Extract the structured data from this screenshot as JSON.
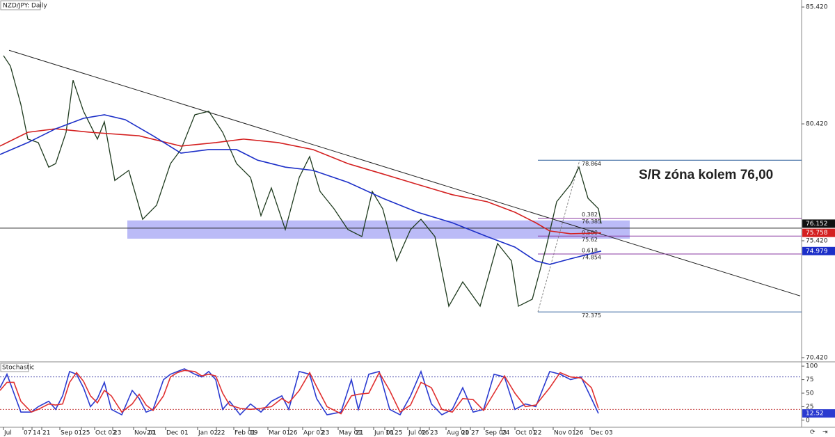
{
  "chart_data": [
    {
      "type": "line",
      "title": "NZD/JPY: Daily",
      "annotation": "S/R zóna kolem 76,00",
      "xlim": [
        0,
        1152
      ],
      "ylim": [
        70.24,
        85.72
      ],
      "yticks": [
        {
          "value": 85.42,
          "label": "85.420"
        },
        {
          "value": 80.42,
          "label": "80.420"
        },
        {
          "value": 75.42,
          "label": "75.420"
        },
        {
          "value": 70.42,
          "label": "70.420"
        }
      ],
      "series": [
        {
          "color": "#1e3a1e",
          "x": [
            5,
            15,
            30,
            40,
            55,
            70,
            80,
            95,
            105,
            120,
            140,
            150,
            165,
            185,
            205,
            225,
            245,
            260,
            280,
            300,
            320,
            340,
            360,
            375,
            390,
            410,
            430,
            445,
            460,
            480,
            500,
            520,
            535,
            550,
            570,
            590,
            605,
            625,
            645,
            665,
            690,
            715,
            735,
            745,
            765,
            785,
            800,
            820,
            832,
            845,
            860,
            864
          ],
          "values": [
            83.34,
            82.89,
            81.25,
            79.77,
            79.62,
            78.57,
            78.72,
            80.06,
            82.29,
            80.96,
            79.77,
            80.51,
            78.0,
            78.43,
            76.34,
            76.94,
            78.72,
            79.32,
            80.81,
            80.96,
            80.06,
            78.72,
            78.13,
            76.49,
            77.68,
            75.9,
            78.13,
            79.02,
            77.53,
            76.79,
            75.9,
            75.6,
            77.53,
            76.79,
            74.56,
            75.9,
            76.34,
            75.6,
            72.62,
            73.66,
            72.62,
            75.3,
            74.56,
            72.62,
            72.92,
            75.15,
            77.09,
            77.83,
            78.57,
            77.24,
            76.79,
            76.152
          ]
        },
        {
          "color": "#d42020",
          "x": [
            0,
            40,
            80,
            130,
            200,
            260,
            310,
            350,
            400,
            450,
            500,
            550,
            600,
            650,
            700,
            740,
            770,
            790,
            820,
            864
          ],
          "values": [
            79.47,
            80.06,
            80.21,
            80.06,
            79.91,
            79.47,
            79.62,
            79.77,
            79.62,
            79.32,
            78.72,
            78.28,
            77.83,
            77.39,
            77.09,
            76.64,
            76.19,
            75.84,
            75.72,
            75.758
          ]
        },
        {
          "color": "#1c2fc8",
          "x": [
            0,
            40,
            80,
            120,
            150,
            180,
            220,
            260,
            300,
            340,
            370,
            410,
            450,
            500,
            550,
            600,
            650,
            700,
            740,
            770,
            790,
            820,
            864
          ],
          "values": [
            79.11,
            79.62,
            80.21,
            80.66,
            80.81,
            80.6,
            79.91,
            79.17,
            79.32,
            79.32,
            78.87,
            78.57,
            78.43,
            77.92,
            77.24,
            76.64,
            76.19,
            75.6,
            75.15,
            74.56,
            74.41,
            74.65,
            74.979
          ]
        }
      ],
      "sr_zone": {
        "x": [
          183,
          905
        ],
        "range": [
          75.51,
          76.29
        ],
        "color": "#7878f0"
      },
      "support_line": 75.96,
      "trendline": {
        "x": [
          13,
          1150
        ],
        "values": [
          83.57,
          73.06
        ]
      },
      "fibonacci": {
        "x": [
          773,
          1152
        ],
        "swing_x": [
          773,
          833
        ],
        "levels": [
          {
            "value": 78.864,
            "color": "#2a5d9a"
          },
          {
            "ratio": 0.382,
            "value": 76.385,
            "color": "#8a3aa0"
          },
          {
            "ratio": {
              "value": 0.5,
              "label": "0.500"
            },
            "value": 75.62,
            "color": "#8a3aa0"
          },
          {
            "ratio": 0.618,
            "value": 74.854,
            "color": "#8a3aa0"
          },
          {
            "value": 72.375,
            "color": "#2a5d9a"
          }
        ]
      }
    },
    {
      "type": "line",
      "title": "Stochastic",
      "xlim": [
        0,
        1152
      ],
      "ylim": [
        -10.5,
        107.9
      ],
      "yticks": [
        0,
        25,
        50,
        75,
        100
      ],
      "levels": [
        20,
        80
      ],
      "xticks": [
        {
          "value": 5,
          "label": "Jul"
        },
        {
          "value": 33,
          "label": "07"
        },
        {
          "value": 46,
          "label": "14"
        },
        {
          "value": 60,
          "label": "21"
        },
        {
          "value": 86,
          "label": "Sep 01"
        },
        {
          "value": 117,
          "label": "25"
        },
        {
          "value": 136,
          "label": "Oct 02"
        },
        {
          "value": 162,
          "label": "23"
        },
        {
          "value": 192,
          "label": "Nov 01"
        },
        {
          "value": 210,
          "label": "20"
        },
        {
          "value": 238,
          "label": "Dec 01"
        },
        {
          "value": 284,
          "label": "Jan 02"
        },
        {
          "value": 311,
          "label": "22"
        },
        {
          "value": 336,
          "label": "Feb 01"
        },
        {
          "value": 358,
          "label": "19"
        },
        {
          "value": 385,
          "label": "Mar 01"
        },
        {
          "value": 415,
          "label": "26"
        },
        {
          "value": 435,
          "label": "Apr 02"
        },
        {
          "value": 461,
          "label": "23"
        },
        {
          "value": 486,
          "label": "May 01"
        },
        {
          "value": 510,
          "label": "21"
        },
        {
          "value": 537,
          "label": "Jun 01"
        },
        {
          "value": 553,
          "label": "18"
        },
        {
          "value": 566,
          "label": "25"
        },
        {
          "value": 586,
          "label": "Jul 02"
        },
        {
          "value": 604,
          "label": "16"
        },
        {
          "value": 617,
          "label": "23"
        },
        {
          "value": 641,
          "label": "Aug 01"
        },
        {
          "value": 662,
          "label": "20"
        },
        {
          "value": 676,
          "label": "27"
        },
        {
          "value": 696,
          "label": "Sep 03"
        },
        {
          "value": 720,
          "label": "24"
        },
        {
          "value": 740,
          "label": "Oct 01"
        },
        {
          "value": 766,
          "label": "22"
        },
        {
          "value": 795,
          "label": "Nov 01"
        },
        {
          "value": 826,
          "label": "26"
        },
        {
          "value": 848,
          "label": "Dec 03"
        }
      ],
      "series": [
        {
          "color": "#2a3ad0",
          "x": [
            0,
            10,
            20,
            30,
            45,
            55,
            70,
            80,
            90,
            100,
            110,
            120,
            130,
            140,
            150,
            160,
            175,
            190,
            200,
            210,
            220,
            235,
            245,
            255,
            265,
            280,
            290,
            300,
            310,
            320,
            330,
            345,
            360,
            375,
            390,
            405,
            415,
            430,
            445,
            455,
            470,
            490,
            505,
            515,
            530,
            545,
            560,
            575,
            590,
            605,
            620,
            635,
            650,
            665,
            680,
            695,
            710,
            725,
            740,
            755,
            770,
            790,
            805,
            820,
            835,
            850,
            860
          ],
          "values": [
            60,
            85,
            50,
            15,
            15,
            25,
            35,
            20,
            45,
            90,
            85,
            60,
            25,
            40,
            70,
            20,
            10,
            55,
            40,
            15,
            20,
            75,
            85,
            90,
            95,
            85,
            80,
            90,
            75,
            20,
            35,
            10,
            30,
            15,
            35,
            45,
            20,
            90,
            85,
            40,
            10,
            15,
            75,
            20,
            85,
            90,
            20,
            10,
            45,
            90,
            30,
            10,
            20,
            60,
            15,
            20,
            85,
            80,
            20,
            30,
            25,
            90,
            85,
            75,
            80,
            40,
            12.52
          ]
        },
        {
          "color": "#e03030",
          "x": [
            0,
            10,
            20,
            30,
            45,
            55,
            70,
            80,
            90,
            100,
            110,
            120,
            130,
            140,
            150,
            160,
            175,
            190,
            200,
            210,
            220,
            235,
            245,
            255,
            265,
            280,
            290,
            300,
            310,
            320,
            330,
            345,
            360,
            375,
            390,
            405,
            415,
            430,
            445,
            455,
            470,
            490,
            505,
            515,
            530,
            545,
            560,
            575,
            590,
            605,
            620,
            635,
            650,
            665,
            680,
            695,
            710,
            725,
            740,
            755,
            770,
            790,
            805,
            820,
            835,
            850,
            860
          ],
          "values": [
            55,
            70,
            70,
            35,
            15,
            20,
            30,
            28,
            30,
            70,
            88,
            72,
            45,
            32,
            55,
            45,
            15,
            30,
            48,
            28,
            18,
            45,
            80,
            88,
            92,
            90,
            82,
            85,
            82,
            50,
            28,
            22,
            20,
            22,
            25,
            40,
            32,
            55,
            88,
            62,
            25,
            12,
            45,
            48,
            50,
            88,
            55,
            15,
            28,
            70,
            60,
            20,
            15,
            40,
            38,
            18,
            50,
            82,
            50,
            25,
            28,
            60,
            88,
            80,
            78,
            60,
            22
          ]
        }
      ]
    }
  ]
}
